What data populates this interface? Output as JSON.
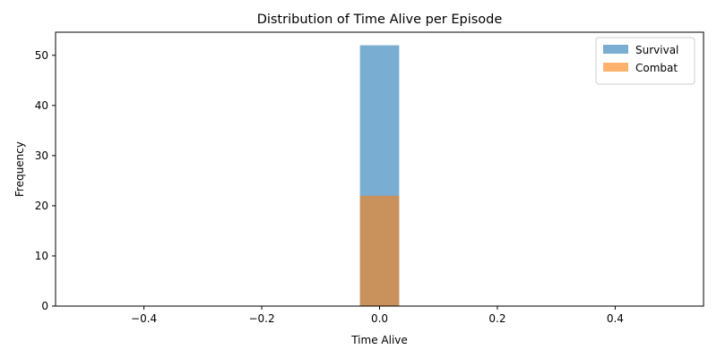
{
  "chart_data": {
    "type": "bar",
    "title": "Distribution of Time Alive per Episode",
    "xlabel": "Time Alive",
    "ylabel": "Frequency",
    "xlim": [
      -0.55,
      0.55
    ],
    "ylim": [
      0,
      54.6
    ],
    "x_ticks": [
      -0.4,
      -0.2,
      0.0,
      0.2,
      0.4
    ],
    "x_tick_labels": [
      "−0.4",
      "−0.2",
      "0.0",
      "0.2",
      "0.4"
    ],
    "y_ticks": [
      0,
      10,
      20,
      30,
      40,
      50
    ],
    "y_tick_labels": [
      "0",
      "10",
      "20",
      "30",
      "40",
      "50"
    ],
    "grid": false,
    "legend_position": "top-right",
    "bins": [
      {
        "start": -0.0333,
        "end": 0.0333
      }
    ],
    "series": [
      {
        "name": "Survival",
        "color": "#1f77b4",
        "opacity": 0.6,
        "values": [
          52
        ]
      },
      {
        "name": "Combat",
        "color": "#ff7f0e",
        "opacity": 0.6,
        "values": [
          22
        ]
      }
    ]
  }
}
